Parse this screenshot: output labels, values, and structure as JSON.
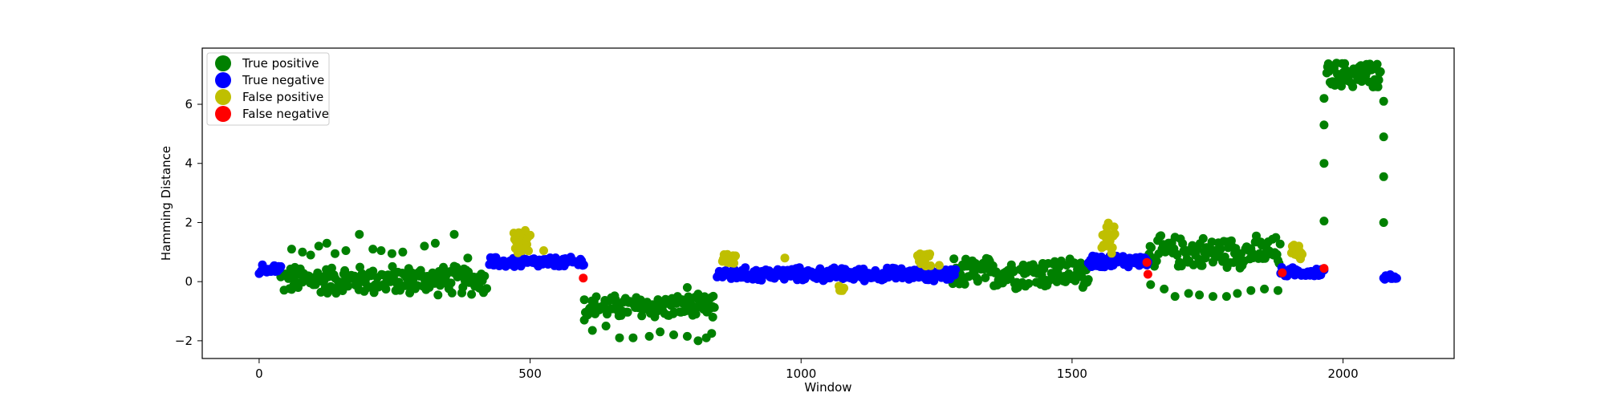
{
  "chart_data": {
    "type": "scatter",
    "title": "",
    "xlabel": "Window",
    "ylabel": "Hamming Distance",
    "xlim": [
      -105,
      2205
    ],
    "ylim": [
      -2.6,
      7.9
    ],
    "xticks": [
      0,
      500,
      1000,
      1500,
      2000
    ],
    "yticks": [
      -2,
      0,
      2,
      4,
      6
    ],
    "grid": false,
    "legend_position": "top-left",
    "colors": {
      "true_positive": "#008000",
      "true_negative": "#0000ff",
      "false_positive": "#bfbf00",
      "false_negative": "#ff0000"
    },
    "series": [
      {
        "name": "True positive",
        "color": "#008000",
        "segments": [
          {
            "x_range": [
              40,
              420
            ],
            "y_min": -0.5,
            "y_max": 0.6,
            "step": 2
          },
          {
            "x_range": [
              600,
              840
            ],
            "y_min": -1.3,
            "y_max": -0.4,
            "step": 2
          },
          {
            "x_range": [
              1280,
              1530
            ],
            "y_min": -0.3,
            "y_max": 0.9,
            "step": 2
          },
          {
            "x_range": [
              1640,
              1885
            ],
            "y_min": 0.4,
            "y_max": 1.6,
            "step": 2
          },
          {
            "x_range": [
              1970,
              2070
            ],
            "y_min": 6.5,
            "y_max": 7.5,
            "step": 1.5
          }
        ],
        "points": [
          [
            60,
            1.1
          ],
          [
            80,
            1.0
          ],
          [
            95,
            0.9
          ],
          [
            110,
            1.2
          ],
          [
            125,
            1.3
          ],
          [
            140,
            0.95
          ],
          [
            160,
            1.05
          ],
          [
            185,
            1.6
          ],
          [
            210,
            1.1
          ],
          [
            225,
            1.05
          ],
          [
            245,
            0.95
          ],
          [
            265,
            1.0
          ],
          [
            305,
            1.2
          ],
          [
            325,
            1.3
          ],
          [
            360,
            1.6
          ],
          [
            385,
            0.8
          ],
          [
            600,
            -1.3
          ],
          [
            615,
            -1.65
          ],
          [
            640,
            -1.5
          ],
          [
            665,
            -1.9
          ],
          [
            690,
            -1.9
          ],
          [
            720,
            -1.85
          ],
          [
            740,
            -1.7
          ],
          [
            765,
            -1.8
          ],
          [
            790,
            -1.85
          ],
          [
            810,
            -2.0
          ],
          [
            825,
            -1.9
          ],
          [
            835,
            -1.75
          ],
          [
            837,
            -1.2
          ],
          [
            790,
            -0.2
          ],
          [
            795,
            -0.6
          ],
          [
            1645,
            -0.1
          ],
          [
            1670,
            -0.25
          ],
          [
            1690,
            -0.5
          ],
          [
            1715,
            -0.4
          ],
          [
            1735,
            -0.45
          ],
          [
            1760,
            -0.5
          ],
          [
            1785,
            -0.5
          ],
          [
            1805,
            -0.4
          ],
          [
            1830,
            -0.3
          ],
          [
            1855,
            -0.25
          ],
          [
            1880,
            -0.3
          ],
          [
            1965,
            2.05
          ],
          [
            1965,
            4.0
          ],
          [
            1965,
            5.3
          ],
          [
            1965,
            6.2
          ],
          [
            2075,
            2.0
          ],
          [
            2075,
            3.55
          ],
          [
            2075,
            4.9
          ],
          [
            2075,
            6.1
          ]
        ]
      },
      {
        "name": "True negative",
        "color": "#0000ff",
        "segments": [
          {
            "x_range": [
              0,
              40
            ],
            "y_min": 0.25,
            "y_max": 0.6,
            "step": 2
          },
          {
            "x_range": [
              425,
              600
            ],
            "y_min": 0.45,
            "y_max": 0.85,
            "step": 2
          },
          {
            "x_range": [
              845,
              1285
            ],
            "y_min": 0.0,
            "y_max": 0.5,
            "step": 2
          },
          {
            "x_range": [
              1530,
              1640
            ],
            "y_min": 0.45,
            "y_max": 0.95,
            "step": 2
          },
          {
            "x_range": [
              1885,
              1965
            ],
            "y_min": 0.15,
            "y_max": 0.5,
            "step": 2
          },
          {
            "x_range": [
              2075,
              2100
            ],
            "y_min": 0.05,
            "y_max": 0.25,
            "step": 2
          }
        ],
        "points": []
      },
      {
        "name": "False positive",
        "color": "#bfbf00",
        "segments": [
          {
            "x_range": [
              470,
              500
            ],
            "y_min": 0.9,
            "y_max": 1.9,
            "step": 1.5
          },
          {
            "x_range": [
              855,
              880
            ],
            "y_min": 0.6,
            "y_max": 0.95,
            "step": 1.5
          },
          {
            "x_range": [
              1070,
              1080
            ],
            "y_min": -0.35,
            "y_max": -0.1,
            "step": 1.5
          },
          {
            "x_range": [
              1215,
              1240
            ],
            "y_min": 0.4,
            "y_max": 1.1,
            "step": 1.5
          },
          {
            "x_range": [
              1555,
              1580
            ],
            "y_min": 0.8,
            "y_max": 2.05,
            "step": 1.5
          },
          {
            "x_range": [
              1905,
              1925
            ],
            "y_min": 0.7,
            "y_max": 1.3,
            "step": 1.5
          }
        ],
        "points": [
          [
            525,
            1.05
          ],
          [
            970,
            0.8
          ],
          [
            1255,
            0.55
          ]
        ]
      },
      {
        "name": "False negative",
        "color": "#ff0000",
        "segments": [],
        "points": [
          [
            598,
            0.12
          ],
          [
            1640,
            0.25
          ],
          [
            1888,
            0.3
          ],
          [
            1965,
            0.45
          ],
          [
            1638,
            0.65
          ]
        ]
      }
    ]
  }
}
